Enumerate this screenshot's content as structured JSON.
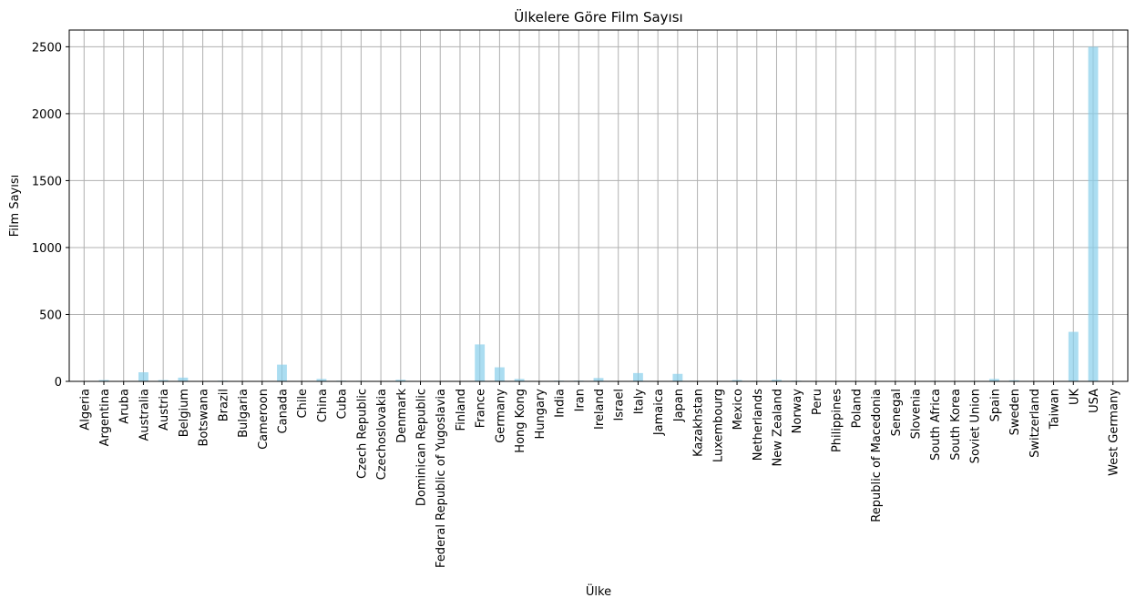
{
  "chart_data": {
    "type": "bar",
    "title": "Ülkelere Göre Film Sayısı",
    "xlabel": "Ülke",
    "ylabel": "Film Sayısı",
    "categories": [
      "Algeria",
      "Argentina",
      "Aruba",
      "Australia",
      "Austria",
      "Belgium",
      "Botswana",
      "Brazil",
      "Bulgaria",
      "Cameroon",
      "Canada",
      "Chile",
      "China",
      "Cuba",
      "Czech Republic",
      "Czechoslovakia",
      "Denmark",
      "Dominican Republic",
      "Federal Republic of Yugoslavia",
      "Finland",
      "France",
      "Germany",
      "Hong Kong",
      "Hungary",
      "India",
      "Iran",
      "Ireland",
      "Israel",
      "Italy",
      "Jamaica",
      "Japan",
      "Kazakhstan",
      "Luxembourg",
      "Mexico",
      "Netherlands",
      "New Zealand",
      "Norway",
      "Peru",
      "Philippines",
      "Poland",
      "Republic of Macedonia",
      "Senegal",
      "Slovenia",
      "South Africa",
      "South Korea",
      "Soviet Union",
      "Spain",
      "Sweden",
      "Switzerland",
      "Taiwan",
      "UK",
      "USA",
      "West Germany"
    ],
    "values": [
      1,
      10,
      1,
      68,
      10,
      28,
      1,
      5,
      1,
      2,
      125,
      2,
      18,
      5,
      4,
      3,
      12,
      1,
      1,
      2,
      276,
      105,
      18,
      2,
      5,
      5,
      25,
      2,
      62,
      1,
      56,
      1,
      1,
      10,
      4,
      12,
      5,
      1,
      1,
      2,
      1,
      1,
      1,
      4,
      1,
      4,
      18,
      8,
      2,
      1,
      370,
      2500,
      1
    ],
    "ylim": [
      0,
      2625
    ],
    "yticks": [
      0,
      500,
      1000,
      1500,
      2000,
      2500
    ],
    "grid": true,
    "bar_color": "#87CEEB",
    "bar_opacity": 0.7
  }
}
